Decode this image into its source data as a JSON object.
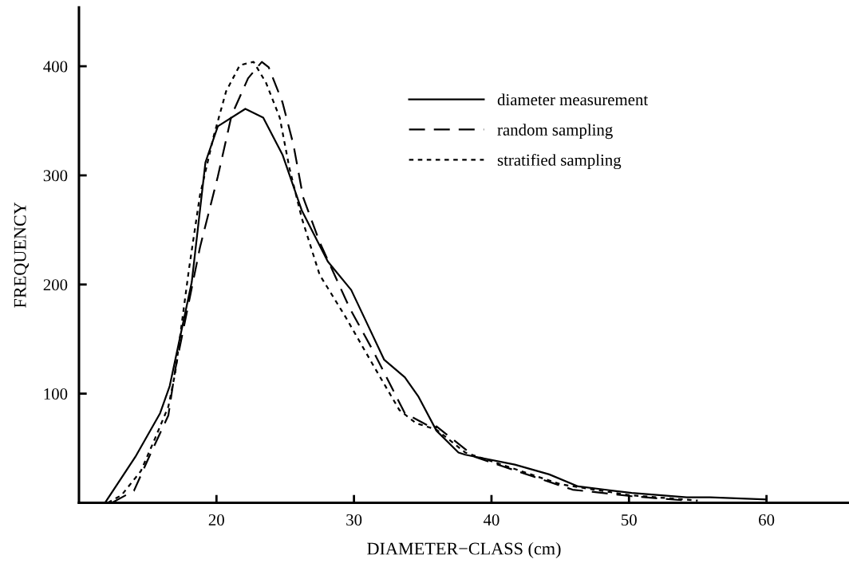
{
  "chart_data": {
    "type": "line",
    "xlabel": "DIAMETER−CLASS (cm)",
    "ylabel": "FREQUENCY",
    "xlim": [
      10,
      66
    ],
    "ylim": [
      0,
      454
    ],
    "xticks": [
      20,
      30,
      40,
      50,
      60
    ],
    "yticks": [
      100,
      200,
      300,
      400
    ],
    "grid": false,
    "legend": "top right",
    "marker": "none",
    "series": [
      {
        "name": "diameter measurement",
        "color": "#000000",
        "line_style": "solid",
        "x": [
          11.9,
          14.1,
          15.9,
          16.6,
          18.2,
          19.2,
          20.1,
          22.1,
          23.4,
          24.8,
          26.2,
          28.1,
          29.8,
          31,
          32.2,
          33.7,
          34.7,
          36,
          37.6,
          38.1,
          41.7,
          44.2,
          46.3,
          50.2,
          54.2,
          55.9,
          60
        ],
        "values": [
          0,
          42,
          82,
          107,
          202,
          312,
          345,
          361,
          353,
          319,
          268,
          221,
          195,
          163,
          131,
          115,
          97,
          66,
          46,
          44,
          35,
          26,
          15,
          9,
          5,
          5,
          3
        ]
      },
      {
        "name": "random sampling",
        "color": "#000000",
        "line_style": "dashed",
        "x": [
          12.4,
          14,
          15.1,
          16.5,
          17,
          18.8,
          20.1,
          21.1,
          22.3,
          23.3,
          23.8,
          24.8,
          25.6,
          26.3,
          27.5,
          29.7,
          31.4,
          33.7,
          35.8,
          36,
          38.8,
          42.1,
          45.9,
          50.2,
          54.2
        ],
        "values": [
          0,
          11,
          42,
          80,
          122,
          234,
          299,
          355,
          389,
          404,
          399,
          367,
          328,
          280,
          239,
          178,
          139,
          82,
          68,
          70,
          42,
          28,
          12,
          6,
          2
        ]
      },
      {
        "name": "stratified sampling",
        "color": "#000000",
        "line_style": "dotted",
        "x": [
          12.1,
          13.1,
          14.5,
          15.5,
          16.5,
          17,
          18,
          18.8,
          19.8,
          20.7,
          21.7,
          22.7,
          23.6,
          24.6,
          25.3,
          26.2,
          27.5,
          29.4,
          31.4,
          33.3,
          34.5,
          36,
          38.1,
          40.5,
          45,
          50,
          55
        ],
        "values": [
          0,
          7,
          29,
          58,
          88,
          119,
          214,
          282,
          336,
          377,
          401,
          404,
          385,
          353,
          307,
          261,
          209,
          170,
          126,
          85,
          73,
          67,
          46,
          36,
          17,
          7,
          2
        ]
      }
    ]
  }
}
